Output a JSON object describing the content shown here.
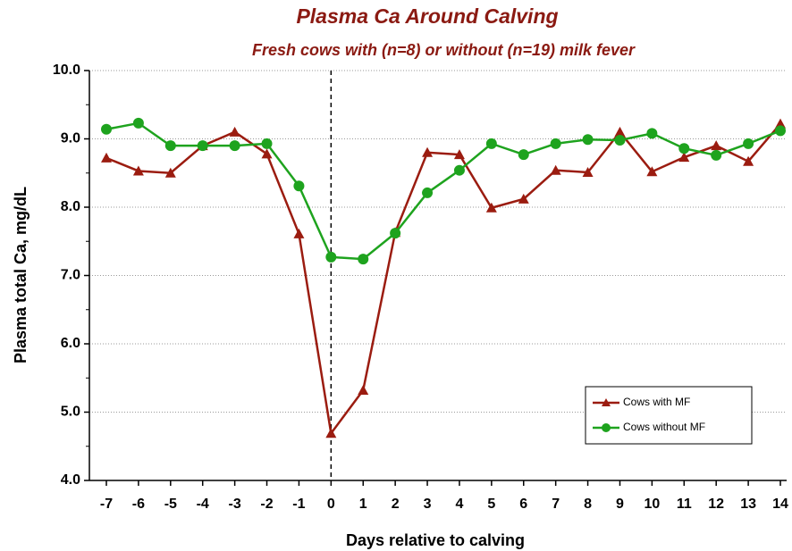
{
  "chart_data": {
    "type": "line",
    "title": "Plasma Ca Around Calving",
    "subtitle": "Fresh cows with (n=8) or without (n=19) milk fever",
    "x_label": "Days relative to calving",
    "y_label": "Plasma total Ca, mg/dL",
    "x": [
      -7,
      -6,
      -5,
      -4,
      -3,
      -2,
      -1,
      0,
      1,
      2,
      3,
      4,
      5,
      6,
      7,
      8,
      9,
      10,
      11,
      12,
      13,
      14
    ],
    "series": [
      {
        "name": "Cows with MF",
        "color": "#9b1c10",
        "marker": "triangle",
        "values": [
          8.72,
          8.53,
          8.5,
          8.9,
          9.1,
          8.78,
          7.61,
          4.69,
          5.32,
          7.63,
          8.8,
          8.77,
          7.99,
          8.12,
          8.54,
          8.51,
          9.1,
          8.52,
          8.73,
          8.9,
          8.67,
          9.22
        ]
      },
      {
        "name": "Cows without MF",
        "color": "#1ea31e",
        "marker": "circle",
        "values": [
          9.14,
          9.23,
          8.9,
          8.9,
          8.9,
          8.93,
          8.31,
          7.27,
          7.24,
          7.62,
          8.21,
          8.54,
          8.93,
          8.77,
          8.93,
          8.99,
          8.98,
          9.08,
          8.86,
          8.76,
          8.93,
          9.12
        ]
      }
    ],
    "xlim": [
      -7,
      14
    ],
    "xticks": [
      -7,
      -6,
      -5,
      -4,
      -3,
      -2,
      -1,
      0,
      1,
      2,
      3,
      4,
      5,
      6,
      7,
      8,
      9,
      10,
      11,
      12,
      13,
      14
    ],
    "ylim": [
      4,
      10
    ],
    "yticks": [
      {
        "value": 4,
        "label": "4.0"
      },
      {
        "value": 5,
        "label": "5.0"
      },
      {
        "value": 6,
        "label": "6.0"
      },
      {
        "value": 7,
        "label": "7.0"
      },
      {
        "value": 8,
        "label": "8.0"
      },
      {
        "value": 9,
        "label": "9.0"
      },
      {
        "value": 10,
        "label": "10.0"
      }
    ],
    "vline": 0,
    "grid": true,
    "legend": "lower right"
  }
}
